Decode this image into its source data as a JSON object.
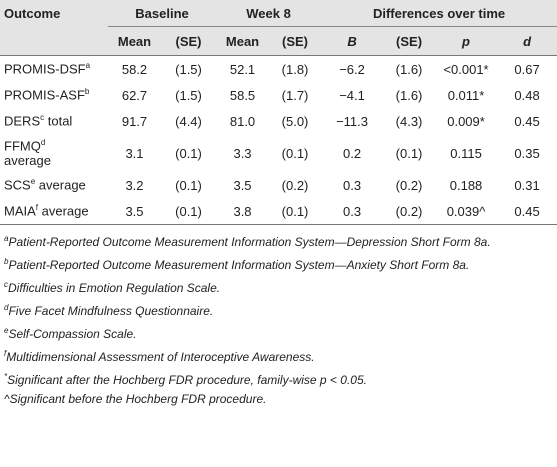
{
  "table": {
    "header": {
      "outcome": "Outcome",
      "groups": [
        "Baseline",
        "Week 8",
        "Differences over time"
      ],
      "columns": [
        "Mean",
        "(SE)",
        "Mean",
        "(SE)",
        "B",
        "(SE)",
        "p",
        "d"
      ]
    },
    "rows": [
      {
        "name": "PROMIS-DSF",
        "sup": "a",
        "rest": "",
        "cells": [
          "58.2",
          "(1.5)",
          "52.1",
          "(1.8)",
          "−6.2",
          "(1.6)",
          "<0.001*",
          "0.67"
        ]
      },
      {
        "name": "PROMIS-ASF",
        "sup": "b",
        "rest": "",
        "cells": [
          "62.7",
          "(1.5)",
          "58.5",
          "(1.7)",
          "−4.1",
          "(1.6)",
          "0.011*",
          "0.48"
        ]
      },
      {
        "name": "DERS",
        "sup": "c",
        "rest": " total",
        "cells": [
          "91.7",
          "(4.4)",
          "81.0",
          "(5.0)",
          "−11.3",
          "(4.3)",
          "0.009*",
          "0.45"
        ]
      },
      {
        "name": "FFMQ",
        "sup": "d",
        "rest": "average",
        "cells": [
          "3.1",
          "(0.1)",
          "3.3",
          "(0.1)",
          "0.2",
          "(0.1)",
          "0.115",
          "0.35"
        ]
      },
      {
        "name": "SCS",
        "sup": "e",
        "rest": " average",
        "cells": [
          "3.2",
          "(0.1)",
          "3.5",
          "(0.2)",
          "0.3",
          "(0.2)",
          "0.188",
          "0.31"
        ]
      },
      {
        "name": "MAIA",
        "sup": "f",
        "rest": " average",
        "cells": [
          "3.5",
          "(0.1)",
          "3.8",
          "(0.1)",
          "0.3",
          "(0.2)",
          "0.039^",
          "0.45"
        ]
      }
    ]
  },
  "footnotes": [
    {
      "mark": "a",
      "superscript": true,
      "text": "Patient-Reported Outcome Measurement Information System—Depression Short Form 8a."
    },
    {
      "mark": "b",
      "superscript": true,
      "text": "Patient-Reported Outcome Measurement Information System—Anxiety Short Form 8a."
    },
    {
      "mark": "c",
      "superscript": true,
      "text": "Difficulties in Emotion Regulation Scale."
    },
    {
      "mark": "d",
      "superscript": true,
      "text": "Five Facet Mindfulness Questionnaire."
    },
    {
      "mark": "e",
      "superscript": true,
      "text": "Self-Compassion Scale."
    },
    {
      "mark": "f",
      "superscript": true,
      "text": "Multidimensional Assessment of Interoceptive Awareness."
    },
    {
      "mark": "*",
      "superscript": true,
      "text": "Significant after the Hochberg FDR procedure, family-wise p < 0.05."
    },
    {
      "mark": "^",
      "superscript": false,
      "text": "Significant before the Hochberg FDR procedure."
    }
  ]
}
